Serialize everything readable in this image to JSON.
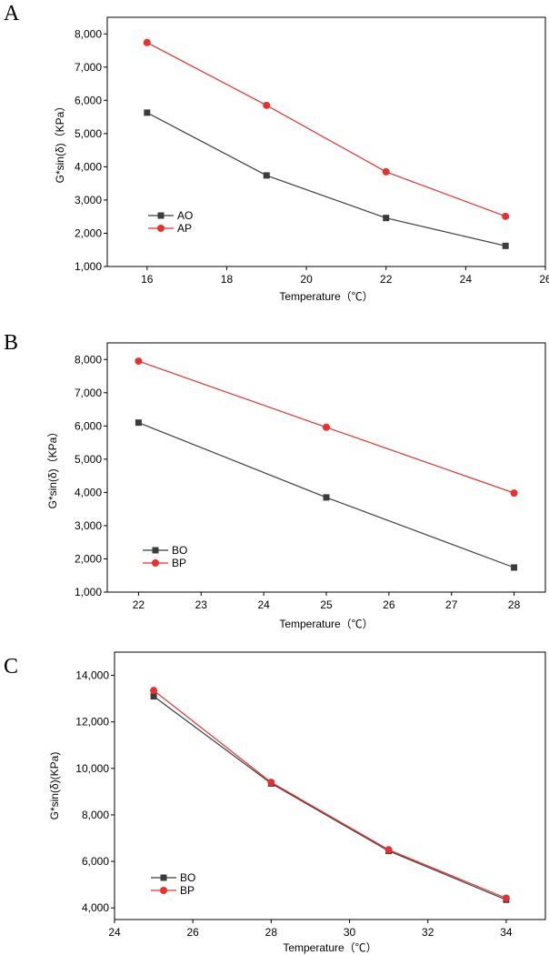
{
  "chart_data": [
    {
      "panel": "A",
      "type": "line",
      "xlabel": "Temperature（℃）",
      "ylabel": "G*sin(δ)（KPa）",
      "xlim": [
        15,
        26
      ],
      "ylim": [
        1000,
        8500
      ],
      "xticks": [
        "16",
        "18",
        "20",
        "22",
        "24",
        "26"
      ],
      "yticks": [
        "1,000",
        "2,000",
        "3,000",
        "4,000",
        "5,000",
        "6,000",
        "7,000",
        "8,000"
      ],
      "x": [
        16,
        19,
        22,
        25
      ],
      "series": [
        {
          "name": "AO",
          "color": "#3c3c3c",
          "marker": "square",
          "values": [
            5630,
            3740,
            2460,
            1620
          ]
        },
        {
          "name": "AP",
          "color": "#e8312f",
          "marker": "circle",
          "values": [
            7740,
            5850,
            3850,
            2510
          ]
        }
      ],
      "legend": "bottom-left",
      "grid": false
    },
    {
      "panel": "B",
      "type": "line",
      "xlabel": "Temperature（℃）",
      "ylabel": "G*sin(δ)（KPa）",
      "xlim": [
        21.5,
        28.5
      ],
      "ylim": [
        1000,
        8500
      ],
      "xticks": [
        "22",
        "23",
        "24",
        "25",
        "26",
        "27",
        "28"
      ],
      "yticks": [
        "1,000",
        "2,000",
        "3,000",
        "4,000",
        "5,000",
        "6,000",
        "7,000",
        "8,000"
      ],
      "x": [
        22,
        25,
        28
      ],
      "series": [
        {
          "name": "BO",
          "color": "#3c3c3c",
          "marker": "square",
          "values": [
            6100,
            3850,
            1740
          ]
        },
        {
          "name": "BP",
          "color": "#e8312f",
          "marker": "circle",
          "values": [
            7950,
            5960,
            3980
          ]
        }
      ],
      "legend": "bottom-left",
      "grid": false
    },
    {
      "panel": "C",
      "type": "line",
      "xlabel": "Temperature（℃）",
      "ylabel": "G*sin(δ)(KPa)",
      "xlim": [
        24,
        35
      ],
      "ylim": [
        3500,
        15000
      ],
      "xticks": [
        "24",
        "26",
        "28",
        "30",
        "32",
        "34"
      ],
      "yticks": [
        "4,000",
        "6,000",
        "8,000",
        "10,000",
        "12,000",
        "14,000"
      ],
      "x": [
        25,
        28,
        31,
        34
      ],
      "series": [
        {
          "name": "BO",
          "color": "#3c3c3c",
          "marker": "square",
          "values": [
            13100,
            9350,
            6450,
            4350
          ]
        },
        {
          "name": "BP",
          "color": "#e8312f",
          "marker": "circle",
          "values": [
            13350,
            9400,
            6500,
            4420
          ]
        }
      ],
      "legend": "bottom-left",
      "grid": false
    }
  ]
}
